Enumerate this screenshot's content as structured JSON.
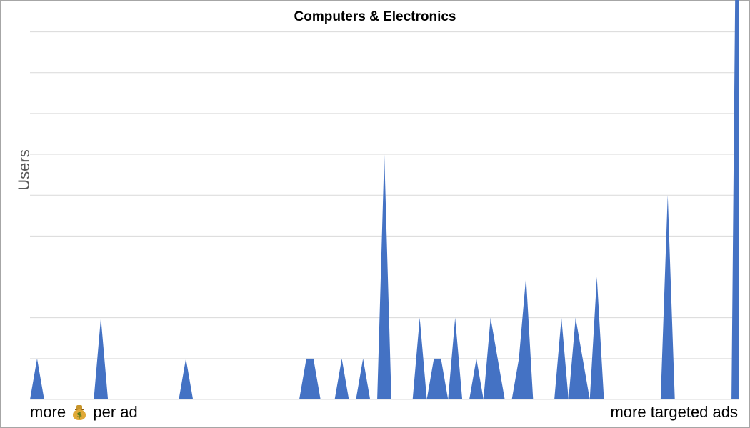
{
  "colors": {
    "area": "#4472c4",
    "grid": "#d9d9d9",
    "frame": "#a6a6a6"
  },
  "labels": {
    "left_prefix": "more",
    "left_icon": "money-bag-icon",
    "left_suffix": "per ad",
    "right": "more targeted ads"
  },
  "chart_data": {
    "type": "area",
    "title": "Computers & Electronics",
    "xlabel": "",
    "ylabel": "Users",
    "ylim": [
      0,
      9.5
    ],
    "grid": true,
    "legend": "none",
    "x": [
      0,
      1,
      2,
      3,
      4,
      5,
      6,
      7,
      8,
      9,
      10,
      11,
      12,
      13,
      14,
      15,
      16,
      17,
      18,
      19,
      20,
      21,
      22,
      23,
      24,
      25,
      26,
      27,
      28,
      29,
      30,
      31,
      32,
      33,
      34,
      35,
      36,
      37,
      38,
      39,
      40,
      41,
      42,
      43,
      44,
      45,
      46,
      47,
      48,
      49,
      50,
      51,
      52,
      53,
      54,
      55,
      56,
      57,
      58,
      59,
      60,
      61,
      62,
      63,
      64,
      65,
      66,
      67,
      68,
      69,
      70,
      71,
      72,
      73,
      74,
      75,
      76,
      77,
      78,
      79,
      80,
      81,
      82,
      83,
      84,
      85,
      86,
      87,
      88,
      89,
      90,
      91,
      92,
      93,
      94,
      95,
      96,
      97,
      98,
      99,
      100
    ],
    "values": [
      0,
      1,
      0,
      0,
      0,
      0,
      0,
      0,
      0,
      0,
      2,
      0,
      0,
      0,
      0,
      0,
      0,
      0,
      0,
      0,
      0,
      0,
      1,
      0,
      0,
      0,
      0,
      0,
      0,
      0,
      0,
      0,
      0,
      0,
      0,
      0,
      0,
      0,
      0,
      1,
      1,
      0,
      0,
      0,
      1,
      0,
      0,
      1,
      0,
      0,
      6,
      0,
      0,
      0,
      0,
      2,
      0,
      1,
      1,
      0,
      2,
      0,
      0,
      1,
      0,
      2,
      1,
      0,
      0,
      1,
      3,
      0,
      0,
      0,
      0,
      2,
      0,
      2,
      1,
      0,
      3,
      0,
      0,
      0,
      0,
      0,
      0,
      0,
      0,
      0,
      5,
      0,
      0,
      0,
      0,
      0,
      0,
      0,
      0,
      0,
      19
    ]
  }
}
